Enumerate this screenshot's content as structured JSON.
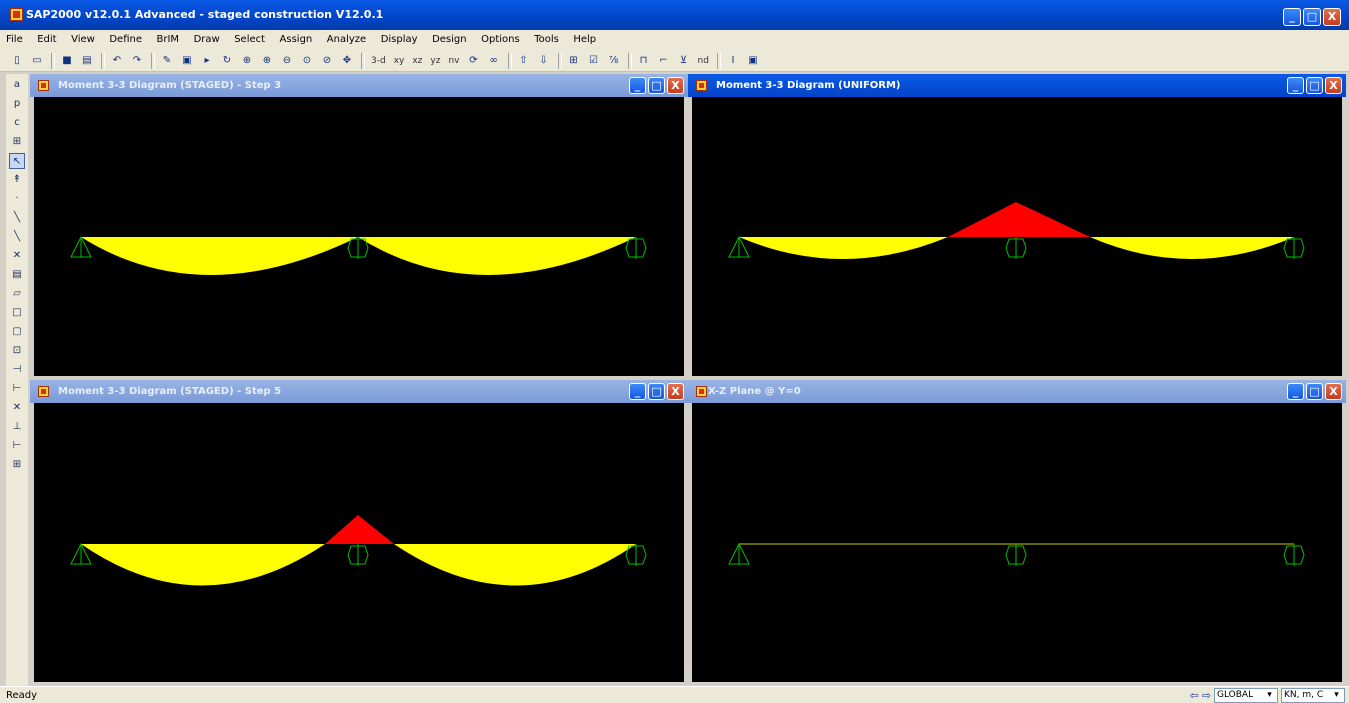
{
  "app": {
    "title": "SAP2000 v12.0.1 Advanced  - staged construction V12.0.1",
    "buttons": [
      "_",
      "□",
      "X"
    ]
  },
  "menu": [
    "File",
    "Edit",
    "View",
    "Define",
    "BrIM",
    "Draw",
    "Select",
    "Assign",
    "Analyze",
    "Display",
    "Design",
    "Options",
    "Tools",
    "Help"
  ],
  "toolbar": {
    "view_labels": [
      "3-d",
      "xy",
      "xz",
      "yz",
      "nv"
    ],
    "misc_label": "nd",
    "icons": [
      "new-icon",
      "open-icon",
      "save-icon",
      "print-icon",
      "undo-icon",
      "redo-icon",
      "pencil-icon",
      "lock-icon",
      "run-icon",
      "refresh-icon",
      "zoom-window-icon",
      "zoom-in-icon",
      "zoom-out-icon",
      "zoom-fit-icon",
      "pan-icon"
    ]
  },
  "windows": [
    {
      "title": "Moment 3-3 Diagram   (STAGED) - Step 3",
      "active": false
    },
    {
      "title": "Moment 3-3 Diagram   (UNIFORM)",
      "active": true
    },
    {
      "title": "Moment 3-3 Diagram   (STAGED) - Step 5",
      "active": false
    },
    {
      "title": "X-Z Plane @ Y=0",
      "active": false
    }
  ],
  "colors": {
    "positive_moment": "#ffff00",
    "negative_moment": "#ff0000",
    "support": "#00c000",
    "frame": "#c8c800",
    "canvas": "#000000"
  },
  "status": {
    "text": "Ready",
    "coord_system": "GLOBAL",
    "units": "KN, m, C"
  }
}
